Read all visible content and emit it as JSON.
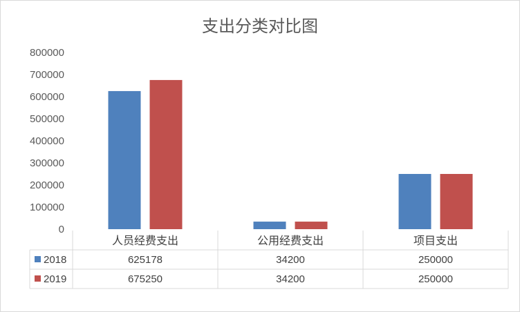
{
  "chart_data": {
    "type": "bar",
    "title": "支出分类对比图",
    "categories": [
      "人员经费支出",
      "公用经费支出",
      "项目支出"
    ],
    "series": [
      {
        "name": "2018",
        "values": [
          625178,
          34200,
          250000
        ],
        "color": "#4f81bd"
      },
      {
        "name": "2019",
        "values": [
          675250,
          34200,
          250000
        ],
        "color": "#c0504d"
      }
    ],
    "ylim": [
      0,
      800000
    ],
    "yticks": [
      "0",
      "100000",
      "200000",
      "300000",
      "400000",
      "500000",
      "600000",
      "700000",
      "800000"
    ],
    "table_values": [
      [
        "625178",
        "34200",
        "250000"
      ],
      [
        "675250",
        "34200",
        "250000"
      ]
    ],
    "grid": false,
    "legend": "data-table"
  }
}
